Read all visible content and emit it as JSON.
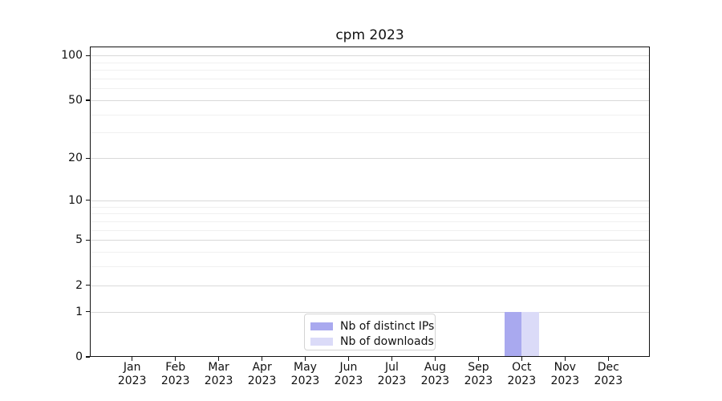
{
  "chart_data": {
    "type": "bar",
    "title": "cpm 2023",
    "categories": [
      "Jan 2023",
      "Feb 2023",
      "Mar 2023",
      "Apr 2023",
      "May 2023",
      "Jun 2023",
      "Jul 2023",
      "Aug 2023",
      "Sep 2023",
      "Oct 2023",
      "Nov 2023",
      "Dec 2023"
    ],
    "series": [
      {
        "name": "Nb of distinct IPs",
        "color": "#a9a9ef",
        "values": [
          0,
          0,
          0,
          0,
          0,
          0,
          0,
          0,
          0,
          1,
          0,
          0
        ]
      },
      {
        "name": "Nb of downloads",
        "color": "#dbdbf8",
        "values": [
          0,
          0,
          0,
          0,
          0,
          0,
          0,
          0,
          0,
          1,
          0,
          0
        ]
      }
    ],
    "yscale": "log1p",
    "ylim": [
      0,
      115
    ],
    "y_major_ticks": [
      0,
      1,
      2,
      5,
      10,
      20,
      50,
      100
    ],
    "y_minor_ticks": [
      3,
      4,
      6,
      7,
      8,
      9,
      30,
      40,
      60,
      70,
      80,
      90
    ],
    "xlabel": "",
    "ylabel": "",
    "grid": true,
    "legend_position": "lower center"
  },
  "colors": {
    "background": "#ffffff",
    "grid_major": "#d9d9d9",
    "grid_minor": "#f0f0f0",
    "spine": "#111111",
    "legend_border": "#d4d4d4",
    "text": "#111111"
  }
}
